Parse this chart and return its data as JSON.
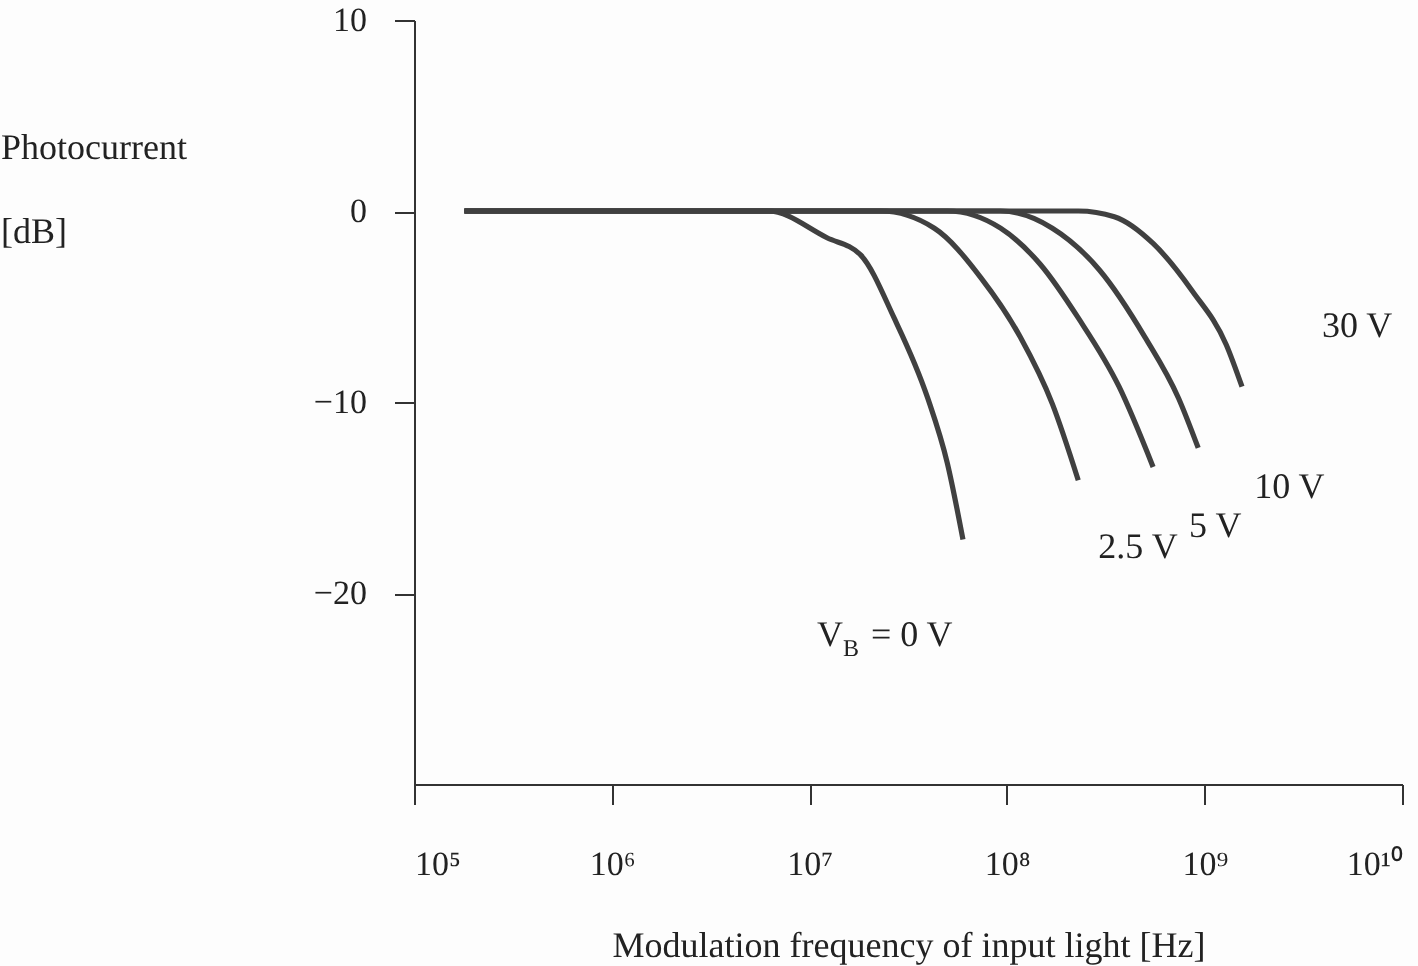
{
  "chart_data": {
    "type": "line",
    "xlabel": "Modulation frequency of input light [Hz]",
    "ylabel": "Photocurrent\n[dB]",
    "log": "x",
    "xlim": [
      100000,
      10000000000
    ],
    "xticks": [
      {
        "value": 100000,
        "label": "10⁵"
      },
      {
        "value": 1000000,
        "label": "10⁶"
      },
      {
        "value": 10000000,
        "label": "10⁷"
      },
      {
        "value": 100000000,
        "label": "10⁸"
      },
      {
        "value": 1000000000,
        "label": "10⁹"
      },
      {
        "value": 10000000000,
        "label": "10¹⁰"
      }
    ],
    "ylim": [
      -30,
      10
    ],
    "yticks": [
      -20,
      -10,
      0,
      10
    ],
    "grid": false,
    "marker": "none",
    "line_style": "solid",
    "series": [
      {
        "name": "V$_{B}$ = 0 V",
        "color": "#404040",
        "x": [
          180000,
          6200000,
          12300000,
          18200000,
          26900000,
          39800000,
          50000000,
          60000000
        ],
        "values": [
          0,
          0,
          -1.4,
          -2.3,
          -5.6,
          -9.8,
          -13.2,
          -17.2
        ]
      },
      {
        "name": "2.5 V",
        "color": "#404040",
        "x": [
          180000,
          23000000,
          43000000,
          74000000,
          117000000,
          170000000,
          230000000
        ],
        "values": [
          0,
          0,
          -0.9,
          -3.5,
          -6.6,
          -10.1,
          -14.1
        ]
      },
      {
        "name": "5 V",
        "color": "#404040",
        "x": [
          180000,
          50000000,
          93000000,
          148000000,
          230000000,
          370000000,
          550000000
        ],
        "values": [
          0,
          0,
          -0.9,
          -2.8,
          -5.6,
          -9.2,
          -13.4
        ]
      },
      {
        "name": "10 V",
        "color": "#404040",
        "x": [
          180000,
          93000000,
          170000000,
          295000000,
          500000000,
          740000000,
          930000000
        ],
        "values": [
          0,
          0,
          -0.9,
          -3.1,
          -6.6,
          -9.8,
          -12.4
        ]
      },
      {
        "name": "30 V",
        "color": "#404040",
        "x": [
          180000,
          230000000,
          350000000,
          550000000,
          870000000,
          1290000000,
          1550000000
        ],
        "values": [
          0,
          0,
          -0.3,
          -1.7,
          -4.2,
          -7.0,
          -9.2
        ]
      }
    ]
  }
}
